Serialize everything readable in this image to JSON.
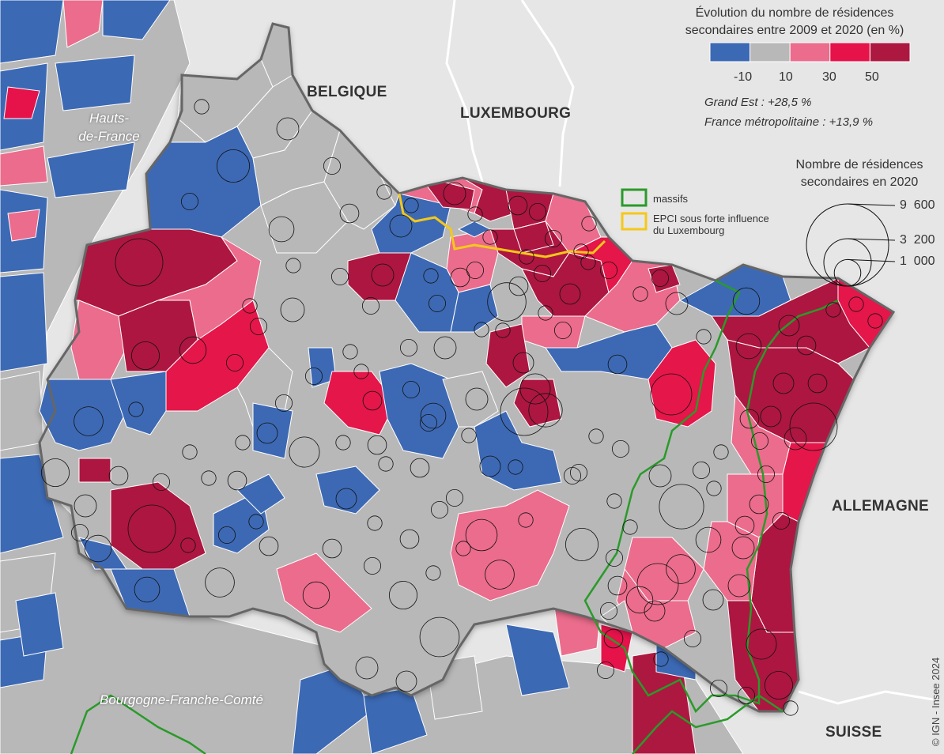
{
  "countries": {
    "belgium": "BELGIQUE",
    "luxembourg": "LUXEMBOURG",
    "germany": "ALLEMAGNE",
    "switzerland": "SUISSE"
  },
  "regions": {
    "hdf_line1": "Hauts-",
    "hdf_line2": "de-France",
    "bfc": "Bourgogne-Franche-Comté"
  },
  "legend": {
    "colour_title_line1": "Évolution du nombre de résidences",
    "colour_title_line2": "secondaires entre 2009 et 2020 (en %)",
    "classes": [
      {
        "color": "#3c69b4"
      },
      {
        "color": "#b8b8b8"
      },
      {
        "color": "#eb6c8c"
      },
      {
        "color": "#e5134a"
      },
      {
        "color": "#ad1840"
      }
    ],
    "breaks": [
      "-10",
      "10",
      "30",
      "50"
    ],
    "grand_est": "Grand Est : +28,5 %",
    "france": "France métropolitaine : +13,9 %",
    "circle_title_line1": "Nombre de résidences",
    "circle_title_line2": "secondaires en 2020",
    "circle_values": [
      "9  600",
      "3  200",
      "1  000"
    ],
    "circle_counts": [
      9600,
      3200,
      1000
    ],
    "massifs_label": "massifs",
    "massifs_color": "#2a9a2a",
    "epci_label_line1": "EPCI sous forte influence",
    "epci_label_line2": "du Luxembourg",
    "epci_color": "#f4c81a"
  },
  "copyright": "© IGN - Insee 2024"
}
